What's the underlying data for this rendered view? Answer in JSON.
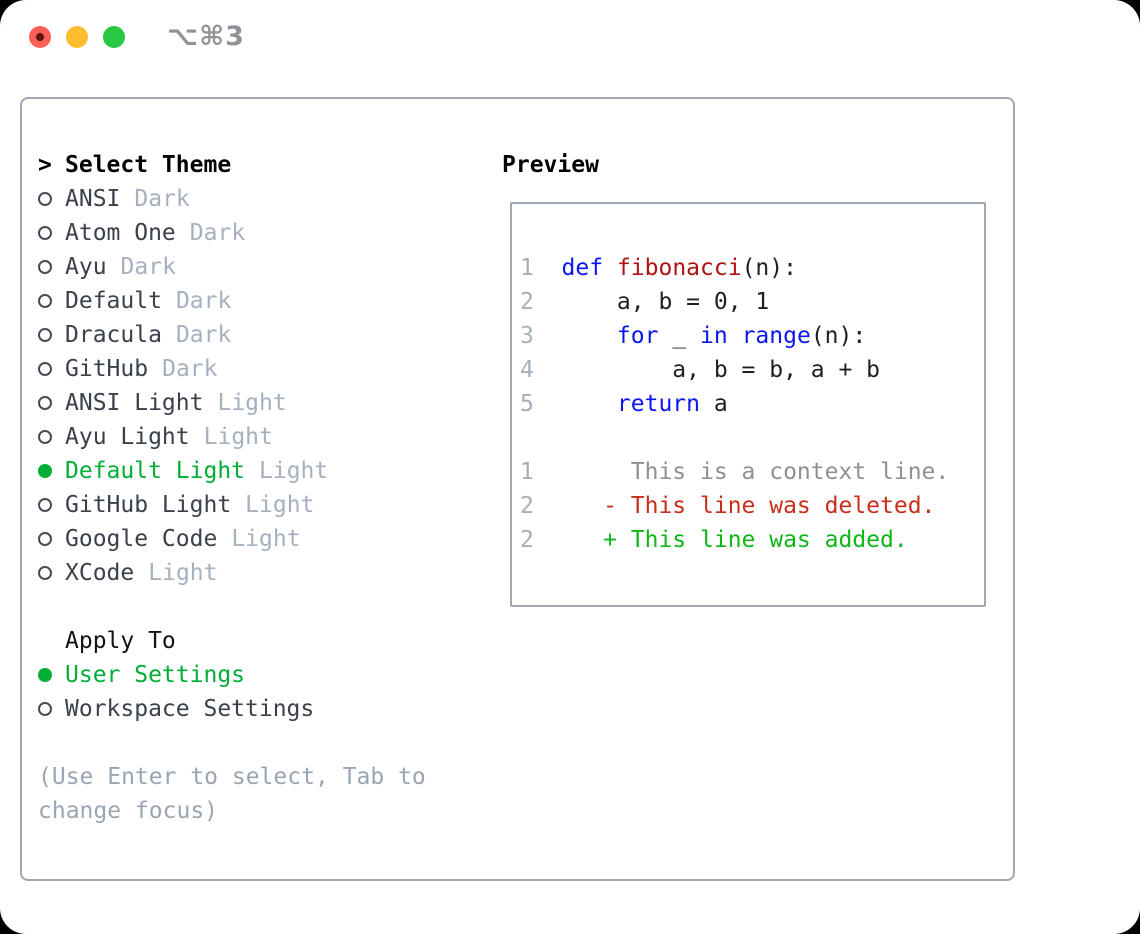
{
  "window": {
    "shortcut": "⌥⌘3",
    "traffic_lights": [
      "close",
      "minimize",
      "zoom"
    ]
  },
  "theme_picker": {
    "cursor": ">",
    "title": "Select Theme",
    "items": [
      {
        "name": "ANSI",
        "variant": "Dark",
        "selected": false
      },
      {
        "name": "Atom One",
        "variant": "Dark",
        "selected": false
      },
      {
        "name": "Ayu",
        "variant": "Dark",
        "selected": false
      },
      {
        "name": "Default",
        "variant": "Dark",
        "selected": false
      },
      {
        "name": "Dracula",
        "variant": "Dark",
        "selected": false
      },
      {
        "name": "GitHub",
        "variant": "Dark",
        "selected": false
      },
      {
        "name": "ANSI Light",
        "variant": "Light",
        "selected": false
      },
      {
        "name": "Ayu Light",
        "variant": "Light",
        "selected": false
      },
      {
        "name": "Default Light",
        "variant": "Light",
        "selected": true
      },
      {
        "name": "GitHub Light",
        "variant": "Light",
        "selected": false
      },
      {
        "name": "Google Code",
        "variant": "Light",
        "selected": false
      },
      {
        "name": "XCode",
        "variant": "Light",
        "selected": false
      }
    ],
    "apply_to": {
      "title": "Apply To",
      "options": [
        {
          "label": "User Settings",
          "selected": true
        },
        {
          "label": "Workspace Settings",
          "selected": false
        }
      ]
    },
    "hint_line1": "(Use Enter to select, Tab to",
    "hint_line2": "change focus)"
  },
  "preview": {
    "title": "Preview",
    "code_lines": [
      {
        "n": "1",
        "s": [
          [
            "kw",
            "def"
          ],
          [
            "pl",
            " "
          ],
          [
            "fn",
            "fibonacci"
          ],
          [
            "pl",
            "(n):"
          ]
        ]
      },
      {
        "n": "2",
        "s": [
          [
            "pl",
            "    a, b = 0, 1"
          ]
        ]
      },
      {
        "n": "3",
        "s": [
          [
            "pl",
            "    "
          ],
          [
            "kw",
            "for"
          ],
          [
            "pl",
            " _ "
          ],
          [
            "kw",
            "in"
          ],
          [
            "pl",
            " "
          ],
          [
            "kw",
            "range"
          ],
          [
            "pl",
            "(n):"
          ]
        ]
      },
      {
        "n": "4",
        "s": [
          [
            "pl",
            "        a, b = b, a + b"
          ]
        ]
      },
      {
        "n": "5",
        "s": [
          [
            "pl",
            "    "
          ],
          [
            "kw",
            "return"
          ],
          [
            "pl",
            " a"
          ]
        ]
      }
    ],
    "diff_lines": [
      {
        "n": "1",
        "s": [
          [
            "ctx",
            "     This is a context line."
          ]
        ]
      },
      {
        "n": "2",
        "s": [
          [
            "del",
            "   - This line was deleted."
          ]
        ]
      },
      {
        "n": "2",
        "s": [
          [
            "add",
            "   + This line was added."
          ]
        ]
      }
    ]
  },
  "colors": {
    "accent_green": "#00ad35",
    "added_green": "#0eb717",
    "deleted_red": "#c92e1b",
    "keyword_blue": "#0a15f0",
    "function_red": "#b01212",
    "context_gray": "#8d9196",
    "line_number_gray": "#a4aebc",
    "variant_gray": "#a6b0bf",
    "text_dark": "#3a414b",
    "code_text": "#1c1f26",
    "hint_gray": "#9aa5b3",
    "border_gray": "#9fa8b4",
    "shortcut_gray": "#8f9296",
    "traffic_red": "#ff5f57",
    "traffic_red_dot": "#5d1410",
    "traffic_yellow": "#febc2e",
    "traffic_green": "#28c840"
  }
}
